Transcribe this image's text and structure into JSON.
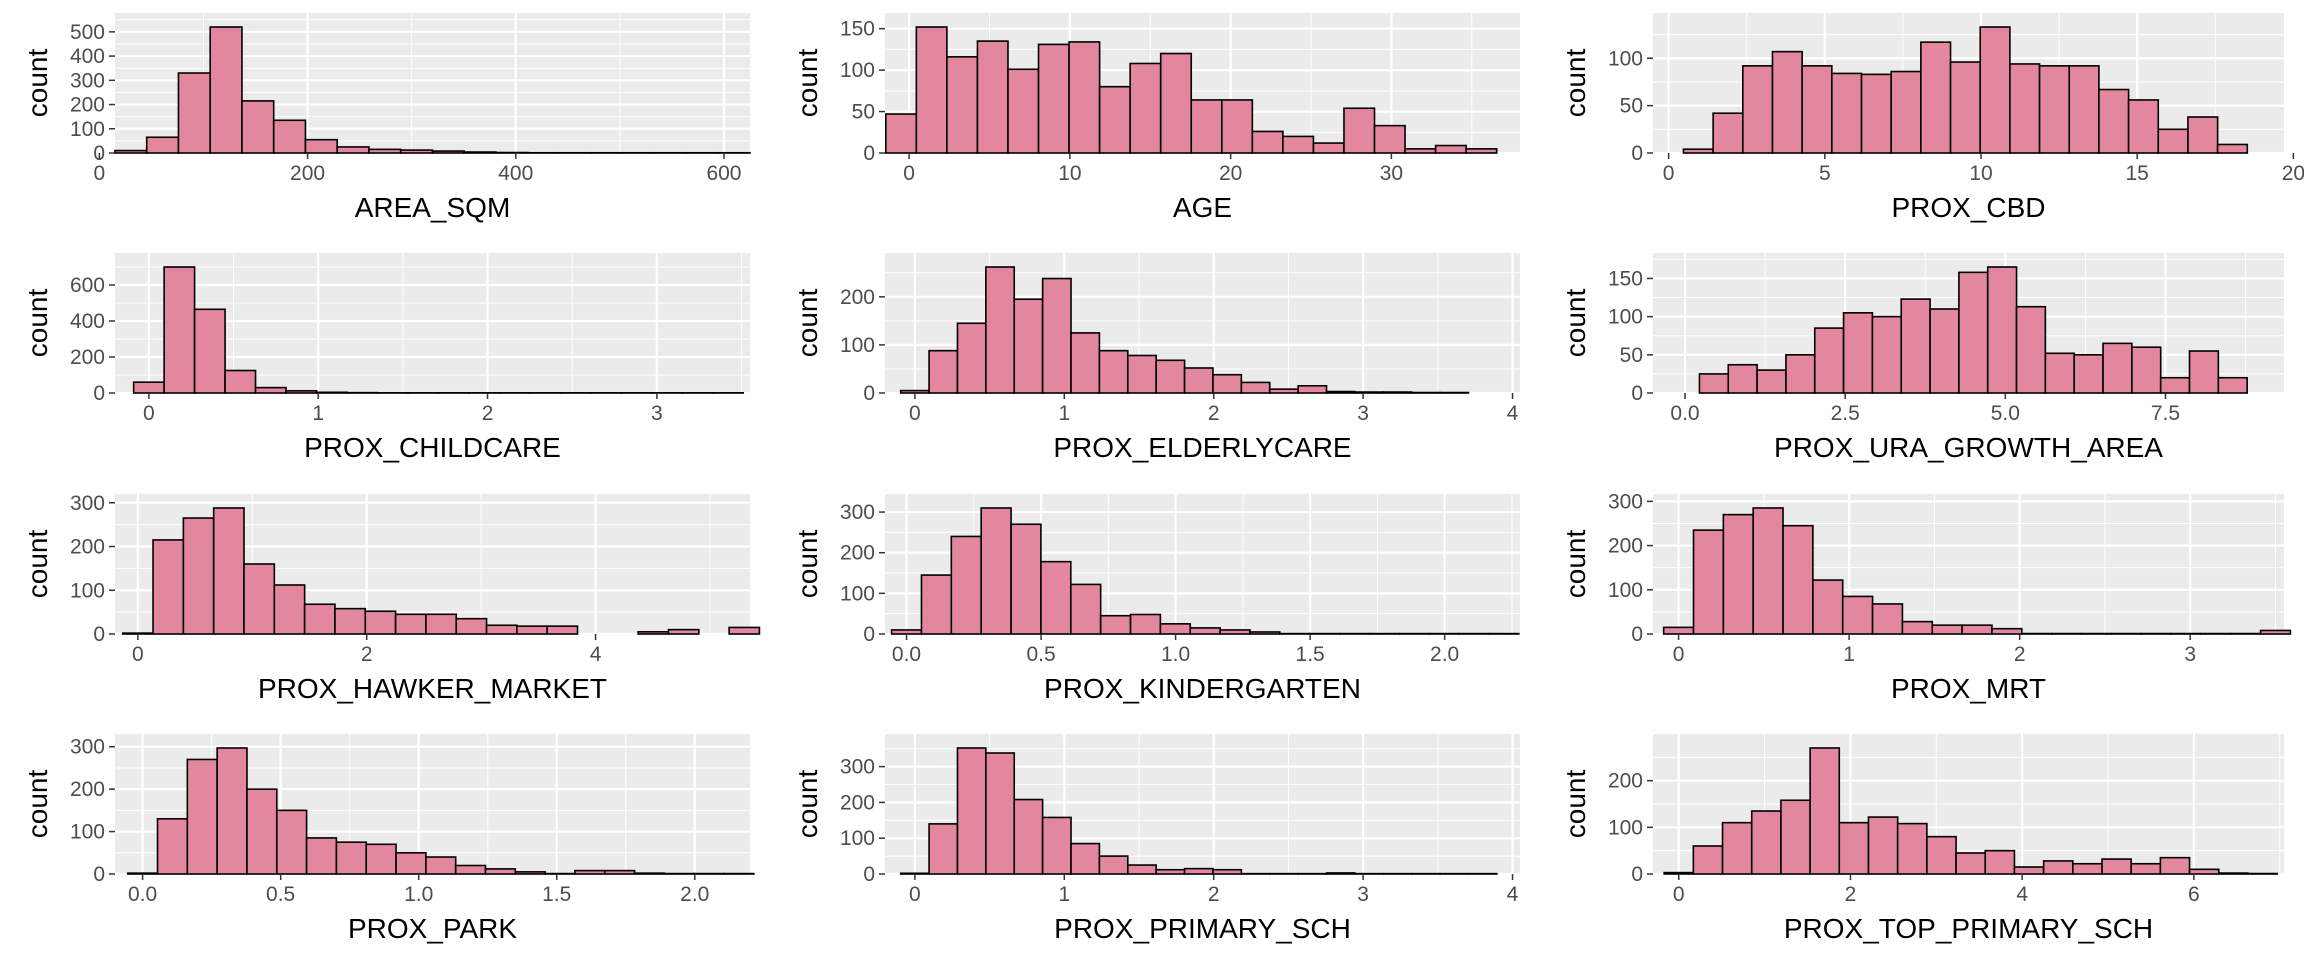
{
  "style": {
    "panel_bg": "#ebebeb",
    "grid_color": "#ffffff",
    "bar_fill": "#e3879e",
    "bar_stroke": "#000000",
    "tick_color": "#333333"
  },
  "chart_data": [
    {
      "type": "bar",
      "xlabel": "AREA_SQM",
      "ylabel": "count",
      "xlim": [
        15,
        625
      ],
      "ylim": [
        0,
        520
      ],
      "xticks": [
        0,
        200,
        400,
        600
      ],
      "xtick_labels": [
        "0",
        "200",
        "400",
        "600"
      ],
      "yticks": [
        0,
        100,
        200,
        300,
        400,
        500
      ],
      "ytick_labels": [
        "0",
        "100",
        "200",
        "300",
        "400",
        "500"
      ],
      "bin_width": 30.5,
      "bin_centers": [
        30.2,
        60.7,
        91.2,
        121.7,
        152.2,
        182.7,
        213.2,
        243.7,
        274.2,
        304.7,
        335.2,
        365.7,
        396.2,
        426.7,
        457.2,
        487.7,
        518.2,
        548.7,
        579.2,
        609.7
      ],
      "counts": [
        10,
        65,
        330,
        520,
        215,
        135,
        55,
        25,
        15,
        12,
        8,
        4,
        2,
        1,
        1,
        1,
        1,
        1,
        1,
        1
      ]
    },
    {
      "type": "bar",
      "xlabel": "AGE",
      "ylabel": "count",
      "xlim": [
        -1.5,
        38
      ],
      "ylim": [
        0,
        152
      ],
      "xticks": [
        0,
        10,
        20,
        30
      ],
      "xtick_labels": [
        "0",
        "10",
        "20",
        "30"
      ],
      "yticks": [
        0,
        50,
        100,
        150
      ],
      "ytick_labels": [
        "0",
        "50",
        "100",
        "150"
      ],
      "bin_width": 1.9,
      "bin_centers": [
        -0.5,
        1.4,
        3.3,
        5.2,
        7.1,
        9.0,
        10.9,
        12.8,
        14.7,
        16.6,
        18.5,
        20.4,
        22.3,
        24.2,
        26.1,
        28.0,
        29.9,
        31.8,
        33.7,
        35.6,
        37.5
      ],
      "counts": [
        47,
        152,
        116,
        135,
        101,
        131,
        134,
        80,
        108,
        120,
        64,
        64,
        26,
        20,
        12,
        54,
        33,
        5,
        9,
        5,
        0
      ]
    },
    {
      "type": "bar",
      "xlabel": "PROX_CBD",
      "ylabel": "count",
      "xlim": [
        -0.5,
        19.7
      ],
      "ylim": [
        0,
        133
      ],
      "xticks": [
        0,
        5,
        10,
        15,
        20
      ],
      "xtick_labels": [
        "0",
        "5",
        "10",
        "15",
        "20"
      ],
      "yticks": [
        0,
        50,
        100
      ],
      "ytick_labels": [
        "0",
        "50",
        "100"
      ],
      "bin_width": 0.95,
      "bin_centers": [
        0.0,
        0.95,
        1.9,
        2.85,
        3.8,
        4.75,
        5.7,
        6.65,
        7.6,
        8.55,
        9.5,
        10.45,
        11.4,
        12.35,
        13.3,
        14.25,
        15.2,
        16.15,
        17.1,
        18.05,
        19.0
      ],
      "counts": [
        0,
        4,
        42,
        92,
        107,
        92,
        84,
        83,
        86,
        117,
        96,
        133,
        94,
        92,
        92,
        67,
        56,
        25,
        38,
        9,
        0
      ]
    },
    {
      "type": "bar",
      "xlabel": "PROX_CHILDCARE",
      "ylabel": "count",
      "xlim": [
        -0.2,
        3.55
      ],
      "ylim": [
        0,
        700
      ],
      "xticks": [
        0,
        1,
        2,
        3
      ],
      "xtick_labels": [
        "0",
        "1",
        "2",
        "3"
      ],
      "yticks": [
        0,
        200,
        400,
        600
      ],
      "ytick_labels": [
        "0",
        "200",
        "400",
        "600"
      ],
      "bin_width": 0.18,
      "bin_centers": [
        0.0,
        0.18,
        0.36,
        0.54,
        0.72,
        0.9,
        1.08,
        1.26,
        1.44,
        1.62,
        1.8,
        1.98,
        2.16,
        2.34,
        2.52,
        2.7,
        2.88,
        3.06,
        3.24,
        3.42
      ],
      "counts": [
        60,
        700,
        465,
        125,
        30,
        12,
        4,
        2,
        1,
        1,
        1,
        1,
        1,
        1,
        1,
        1,
        1,
        1,
        1,
        1
      ]
    },
    {
      "type": "bar",
      "xlabel": "PROX_ELDERLYCARE",
      "ylabel": "count",
      "xlim": [
        -0.2,
        4.05
      ],
      "ylim": [
        0,
        262
      ],
      "xticks": [
        0,
        1,
        2,
        3,
        4
      ],
      "xtick_labels": [
        "0",
        "1",
        "2",
        "3",
        "4"
      ],
      "yticks": [
        0,
        100,
        200
      ],
      "ytick_labels": [
        "0",
        "100",
        "200"
      ],
      "bin_width": 0.19,
      "bin_centers": [
        0.0,
        0.19,
        0.38,
        0.57,
        0.76,
        0.95,
        1.14,
        1.33,
        1.52,
        1.71,
        1.9,
        2.09,
        2.28,
        2.47,
        2.66,
        2.85,
        3.04,
        3.23,
        3.42,
        3.61
      ],
      "counts": [
        5,
        88,
        145,
        262,
        195,
        238,
        125,
        88,
        78,
        68,
        52,
        38,
        22,
        8,
        15,
        3,
        2,
        2,
        1,
        1
      ]
    },
    {
      "type": "bar",
      "xlabel": "PROX_URA_GROWTH_AREA",
      "ylabel": "count",
      "xlim": [
        -0.5,
        9.35
      ],
      "ylim": [
        0,
        165
      ],
      "xticks": [
        0,
        2.5,
        5,
        7.5
      ],
      "xtick_labels": [
        "0.0",
        "2.5",
        "5.0",
        "7.5"
      ],
      "yticks": [
        0,
        50,
        100,
        150
      ],
      "ytick_labels": [
        "0",
        "50",
        "100",
        "150"
      ],
      "bin_width": 0.45,
      "bin_centers": [
        0.0,
        0.45,
        0.9,
        1.35,
        1.8,
        2.25,
        2.7,
        3.15,
        3.6,
        4.05,
        4.5,
        4.95,
        5.4,
        5.85,
        6.3,
        6.75,
        7.2,
        7.65,
        8.1,
        8.55,
        9.0
      ],
      "counts": [
        0,
        25,
        37,
        30,
        50,
        85,
        105,
        100,
        123,
        110,
        158,
        165,
        113,
        52,
        50,
        65,
        60,
        20,
        55,
        20,
        0
      ]
    },
    {
      "type": "bar",
      "xlabel": "PROX_HAWKER_MARKET",
      "ylabel": "count",
      "xlim": [
        -0.2,
        5.35
      ],
      "ylim": [
        0,
        288
      ],
      "xticks": [
        0,
        2,
        4
      ],
      "xtick_labels": [
        "0",
        "2",
        "4"
      ],
      "yticks": [
        0,
        100,
        200,
        300
      ],
      "ytick_labels": [
        "0",
        "100",
        "200",
        "300"
      ],
      "bin_width": 0.265,
      "bin_centers": [
        0.0,
        0.265,
        0.53,
        0.795,
        1.06,
        1.325,
        1.59,
        1.855,
        2.12,
        2.385,
        2.65,
        2.915,
        3.18,
        3.445,
        3.71,
        3.975,
        4.24,
        4.505,
        4.77,
        5.035,
        5.3
      ],
      "counts": [
        2,
        215,
        265,
        288,
        160,
        112,
        68,
        58,
        52,
        45,
        45,
        35,
        20,
        18,
        18,
        0,
        0,
        5,
        10,
        0,
        15
      ]
    },
    {
      "type": "bar",
      "xlabel": "PROX_KINDERGARTEN",
      "ylabel": "count",
      "xlim": [
        -0.08,
        2.28
      ],
      "ylim": [
        0,
        310
      ],
      "xticks": [
        0,
        0.5,
        1,
        1.5,
        2
      ],
      "xtick_labels": [
        "0.0",
        "0.5",
        "1.0",
        "1.5",
        "2.0"
      ],
      "yticks": [
        0,
        100,
        200,
        300
      ],
      "ytick_labels": [
        "0",
        "100",
        "200",
        "300"
      ],
      "bin_width": 0.111,
      "bin_centers": [
        0.0,
        0.111,
        0.222,
        0.333,
        0.444,
        0.555,
        0.666,
        0.777,
        0.888,
        0.999,
        1.11,
        1.221,
        1.332,
        1.443,
        1.554,
        1.665,
        1.776,
        1.887,
        1.998,
        2.109,
        2.22
      ],
      "counts": [
        10,
        145,
        240,
        310,
        270,
        178,
        122,
        45,
        48,
        25,
        15,
        10,
        5,
        1,
        1,
        1,
        1,
        1,
        1,
        1,
        1
      ]
    },
    {
      "type": "bar",
      "xlabel": "PROX_MRT",
      "ylabel": "count",
      "xlim": [
        -0.15,
        3.55
      ],
      "ylim": [
        0,
        285
      ],
      "xticks": [
        0,
        1,
        2,
        3
      ],
      "xtick_labels": [
        "0",
        "1",
        "2",
        "3"
      ],
      "yticks": [
        0,
        100,
        200,
        300
      ],
      "ytick_labels": [
        "0",
        "100",
        "200",
        "300"
      ],
      "bin_width": 0.175,
      "bin_centers": [
        0.0,
        0.175,
        0.35,
        0.525,
        0.7,
        0.875,
        1.05,
        1.225,
        1.4,
        1.575,
        1.75,
        1.925,
        2.1,
        2.275,
        2.45,
        2.625,
        2.8,
        2.975,
        3.15,
        3.325,
        3.5
      ],
      "counts": [
        15,
        235,
        270,
        285,
        245,
        122,
        85,
        68,
        28,
        20,
        20,
        12,
        1,
        1,
        1,
        1,
        1,
        1,
        1,
        1,
        8
      ]
    },
    {
      "type": "bar",
      "xlabel": "PROX_PARK",
      "ylabel": "count",
      "xlim": [
        -0.1,
        2.2
      ],
      "ylim": [
        0,
        297
      ],
      "xticks": [
        0,
        0.5,
        1,
        1.5,
        2
      ],
      "xtick_labels": [
        "0.0",
        "0.5",
        "1.0",
        "1.5",
        "2.0"
      ],
      "yticks": [
        0,
        100,
        200,
        300
      ],
      "ytick_labels": [
        "0",
        "100",
        "200",
        "300"
      ],
      "bin_width": 0.108,
      "bin_centers": [
        0.0,
        0.108,
        0.216,
        0.324,
        0.432,
        0.54,
        0.648,
        0.756,
        0.864,
        0.972,
        1.08,
        1.188,
        1.296,
        1.404,
        1.512,
        1.62,
        1.728,
        1.836,
        1.944,
        2.052,
        2.16
      ],
      "counts": [
        2,
        130,
        270,
        297,
        200,
        150,
        85,
        75,
        70,
        50,
        40,
        20,
        12,
        5,
        1,
        8,
        8,
        2,
        1,
        1,
        1
      ]
    },
    {
      "type": "bar",
      "xlabel": "PROX_PRIMARY_SCH",
      "ylabel": "count",
      "xlim": [
        -0.2,
        4.05
      ],
      "ylim": [
        0,
        352
      ],
      "xticks": [
        0,
        1,
        2,
        3,
        4
      ],
      "xtick_labels": [
        "0",
        "1",
        "2",
        "3",
        "4"
      ],
      "yticks": [
        0,
        100,
        200,
        300
      ],
      "ytick_labels": [
        "0",
        "100",
        "200",
        "300"
      ],
      "bin_width": 0.19,
      "bin_centers": [
        0.0,
        0.19,
        0.38,
        0.57,
        0.76,
        0.95,
        1.14,
        1.33,
        1.52,
        1.71,
        1.9,
        2.09,
        2.28,
        2.47,
        2.66,
        2.85,
        3.04,
        3.23,
        3.42,
        3.61,
        3.8
      ],
      "counts": [
        2,
        140,
        352,
        338,
        208,
        158,
        85,
        50,
        25,
        12,
        15,
        12,
        1,
        1,
        1,
        3,
        1,
        1,
        1,
        1,
        1
      ]
    },
    {
      "type": "bar",
      "xlabel": "PROX_TOP_PRIMARY_SCH",
      "ylabel": "count",
      "xlim": [
        -0.3,
        7.05
      ],
      "ylim": [
        0,
        270
      ],
      "xticks": [
        0,
        2,
        4,
        6
      ],
      "xtick_labels": [
        "0",
        "2",
        "4",
        "6"
      ],
      "yticks": [
        0,
        100,
        200
      ],
      "ytick_labels": [
        "0",
        "100",
        "200"
      ],
      "bin_width": 0.34,
      "bin_centers": [
        0.0,
        0.34,
        0.68,
        1.02,
        1.36,
        1.7,
        2.04,
        2.38,
        2.72,
        3.06,
        3.4,
        3.74,
        4.08,
        4.42,
        4.76,
        5.1,
        5.44,
        5.78,
        6.12,
        6.46,
        6.8
      ],
      "counts": [
        3,
        60,
        110,
        135,
        158,
        270,
        110,
        122,
        108,
        80,
        45,
        50,
        15,
        28,
        22,
        32,
        22,
        35,
        10,
        2,
        1
      ]
    }
  ]
}
